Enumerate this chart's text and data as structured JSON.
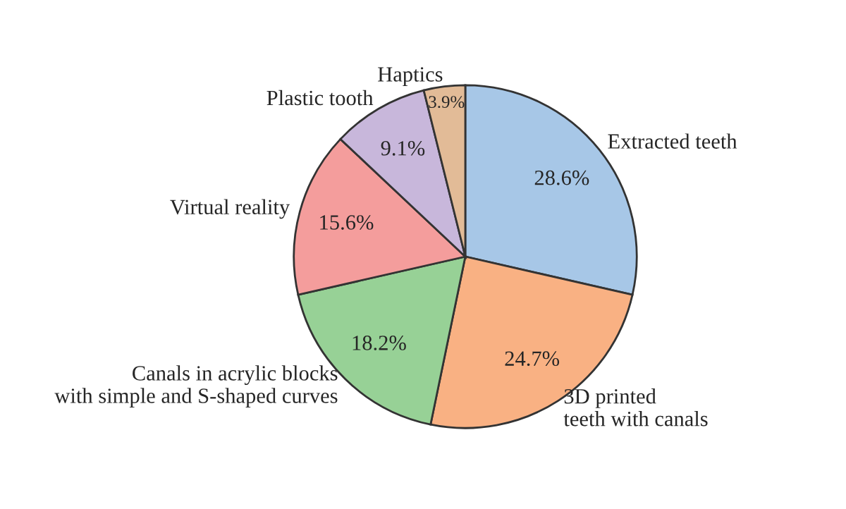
{
  "chart_data": {
    "type": "pie",
    "categories": [
      "Extracted teeth",
      "3D printed\nteeth with canals",
      "Canals in acrylic blocks\nwith simple and S-shaped curves",
      "Virtual reality",
      "Plastic tooth",
      "Haptics"
    ],
    "values": [
      28.6,
      24.7,
      18.2,
      15.6,
      9.1,
      3.9
    ],
    "value_labels": [
      "28.6%",
      "24.7%",
      "18.2%",
      "15.6%",
      "9.1%",
      "3.9%"
    ],
    "colors": [
      "#a7c7e7",
      "#f9b183",
      "#97d196",
      "#f49d9c",
      "#c8b7db",
      "#e2bb97"
    ],
    "legend": false
  }
}
